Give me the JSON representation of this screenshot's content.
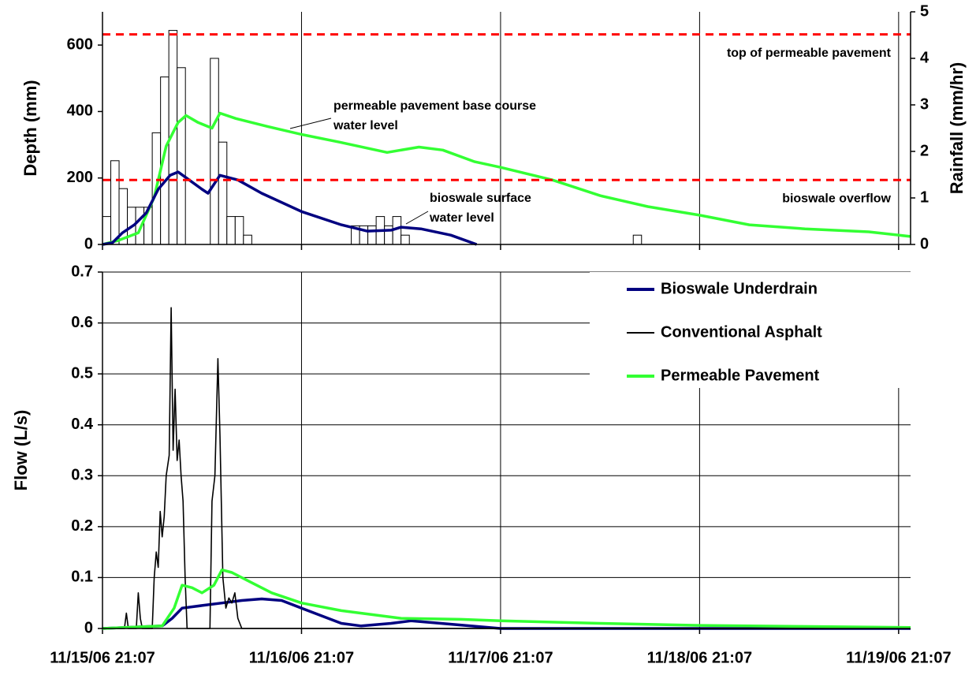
{
  "chart_data": [
    {
      "type": "line",
      "ylabel": "Depth (mm)",
      "y2label": "Rainfall (mm/hr)",
      "xlim": [
        0,
        4.06
      ],
      "xticks": [
        0,
        1,
        2,
        3,
        4
      ],
      "ylim": [
        0,
        700
      ],
      "yticks": [
        0,
        200,
        400,
        600
      ],
      "y2lim": [
        0,
        5
      ],
      "y2ticks": [
        0,
        1,
        2,
        3,
        4,
        5
      ],
      "series": [
        {
          "type": "bar",
          "axis": "y2",
          "color": "#ffffff",
          "x": [
            0,
            0.0417,
            0.0833,
            0.125,
            0.1667,
            0.2083,
            0.25,
            0.2917,
            0.3333,
            0.375,
            0.5417,
            0.5833,
            0.625,
            0.6667,
            0.7083,
            1.25,
            1.2917,
            1.3333,
            1.375,
            1.4167,
            1.4583,
            1.5,
            2.6667
          ],
          "values": [
            0.6,
            1.8,
            1.2,
            0.8,
            0.8,
            0.8,
            2.4,
            3.6,
            4.6,
            3.8,
            4.0,
            2.2,
            0.6,
            0.6,
            0.2,
            0.4,
            0.4,
            0.4,
            0.6,
            0.4,
            0.6,
            0.2,
            0.2
          ]
        },
        {
          "type": "line",
          "color": "#33ff33",
          "x": [
            0,
            0.08,
            0.18,
            0.26,
            0.32,
            0.38,
            0.42,
            0.48,
            0.55,
            0.59,
            0.67,
            0.83,
            1.0,
            1.19,
            1.43,
            1.59,
            1.71,
            1.87,
            2.0,
            2.26,
            2.5,
            2.74,
            3.0,
            3.25,
            3.53,
            3.85,
            4.06
          ],
          "values": [
            0,
            12,
            35,
            142,
            296,
            367,
            388,
            367,
            350,
            395,
            379,
            355,
            331,
            308,
            277,
            293,
            284,
            249,
            232,
            194,
            147,
            114,
            88,
            59,
            47,
            38,
            24
          ]
        },
        {
          "type": "line",
          "color": "#000080",
          "x": [
            0,
            0.05,
            0.1,
            0.16,
            0.22,
            0.28,
            0.34,
            0.38,
            0.42,
            0.5,
            0.53,
            0.59,
            0.68,
            0.8,
            1.0,
            1.2,
            1.33,
            1.45,
            1.5,
            1.6,
            1.75,
            1.88
          ],
          "values": [
            0,
            5,
            35,
            59,
            95,
            166,
            208,
            218,
            201,
            166,
            154,
            208,
            194,
            154,
            99,
            59,
            40,
            43,
            52,
            47,
            28,
            0
          ]
        }
      ],
      "hlines": [
        {
          "value": 632,
          "label": "top of permeable pavement",
          "color": "#ff0000"
        },
        {
          "value": 194,
          "label": "bioswale overflow",
          "color": "#ff0000"
        }
      ],
      "annotations": [
        {
          "text": [
            "permeable pavement base course",
            "water level"
          ]
        },
        {
          "text": [
            "bioswale surface",
            "water level"
          ]
        }
      ]
    },
    {
      "type": "line",
      "ylabel": "Flow (L/s)",
      "xlim": [
        0,
        4.06
      ],
      "xticks": [
        {
          "value": 0,
          "label": "11/15/06 21:07"
        },
        {
          "value": 1,
          "label": "11/16/06 21:07"
        },
        {
          "value": 2,
          "label": "11/17/06 21:07"
        },
        {
          "value": 3,
          "label": "11/18/06 21:07"
        },
        {
          "value": 4,
          "label": "11/19/06 21:07"
        }
      ],
      "ylim": [
        0,
        0.7
      ],
      "yticks": [
        0,
        0.1,
        0.2,
        0.3,
        0.4,
        0.5,
        0.6,
        0.7
      ],
      "grid": true,
      "legend": "upper right",
      "series": [
        {
          "name": "Bioswale Underdrain",
          "color": "#000080",
          "x": [
            0,
            0.3,
            0.35,
            0.4,
            0.5,
            0.6,
            0.7,
            0.8,
            0.9,
            1.0,
            1.1,
            1.2,
            1.3,
            1.45,
            1.55,
            1.7,
            1.85,
            2.0,
            4.06
          ],
          "values": [
            0,
            0.005,
            0.02,
            0.04,
            0.045,
            0.05,
            0.055,
            0.058,
            0.055,
            0.04,
            0.025,
            0.01,
            0.005,
            0.01,
            0.015,
            0.01,
            0.005,
            0,
            0
          ]
        },
        {
          "name": "Conventional Asphalt",
          "color": "#000000",
          "x": [
            0,
            0.11,
            0.12,
            0.13,
            0.17,
            0.18,
            0.19,
            0.2,
            0.25,
            0.26,
            0.27,
            0.28,
            0.29,
            0.3,
            0.31,
            0.32,
            0.335,
            0.345,
            0.355,
            0.365,
            0.375,
            0.385,
            0.395,
            0.405,
            0.415,
            0.425,
            0.54,
            0.55,
            0.565,
            0.58,
            0.59,
            0.605,
            0.62,
            0.635,
            0.65,
            0.665,
            0.68,
            0.7,
            4.06
          ],
          "values": [
            0,
            0,
            0.03,
            0,
            0,
            0.07,
            0.02,
            0,
            0,
            0.1,
            0.15,
            0.12,
            0.23,
            0.18,
            0.22,
            0.3,
            0.34,
            0.63,
            0.35,
            0.47,
            0.33,
            0.37,
            0.3,
            0.25,
            0.1,
            0,
            0,
            0.25,
            0.3,
            0.53,
            0.38,
            0.1,
            0.04,
            0.06,
            0.05,
            0.07,
            0.02,
            0,
            0
          ]
        },
        {
          "name": "Permeable Pavement",
          "color": "#33ff33",
          "x": [
            0,
            0.3,
            0.36,
            0.4,
            0.45,
            0.5,
            0.56,
            0.6,
            0.65,
            0.75,
            0.85,
            1.0,
            1.2,
            1.5,
            1.8,
            2.0,
            2.5,
            3.0,
            3.5,
            4.06
          ],
          "values": [
            0,
            0.005,
            0.04,
            0.085,
            0.08,
            0.07,
            0.085,
            0.115,
            0.11,
            0.09,
            0.07,
            0.05,
            0.035,
            0.02,
            0.018,
            0.015,
            0.01,
            0.006,
            0.004,
            0.002
          ]
        }
      ]
    }
  ]
}
